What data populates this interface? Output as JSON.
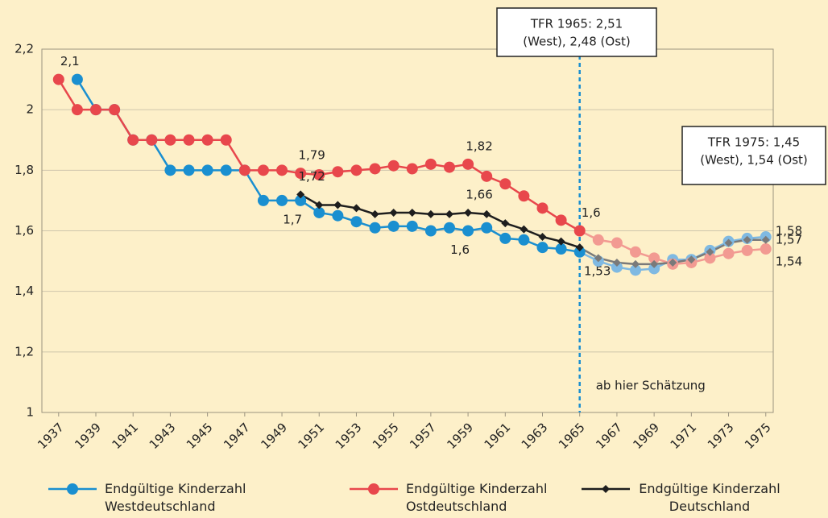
{
  "chart_data": {
    "type": "line",
    "x": [
      1937,
      1938,
      1939,
      1940,
      1941,
      1942,
      1943,
      1944,
      1945,
      1946,
      1947,
      1948,
      1949,
      1950,
      1951,
      1952,
      1953,
      1954,
      1955,
      1956,
      1957,
      1958,
      1959,
      1960,
      1961,
      1962,
      1963,
      1964,
      1965,
      1966,
      1967,
      1968,
      1969,
      1970,
      1971,
      1972,
      1973,
      1974,
      1975
    ],
    "xlim": [
      1936.1,
      1975.4
    ],
    "xticks": [
      1937,
      1939,
      1941,
      1943,
      1945,
      1947,
      1949,
      1951,
      1953,
      1955,
      1957,
      1959,
      1961,
      1963,
      1965,
      1967,
      1969,
      1971,
      1973,
      1975
    ],
    "ylim": [
      1,
      2.2
    ],
    "yticks": [
      1,
      {
        "value": 1.2,
        "label": "1,2"
      },
      {
        "value": 1.4,
        "label": "1,4"
      },
      {
        "value": 1.6,
        "label": "1,6"
      },
      {
        "value": 1.8,
        "label": "1,8"
      },
      2,
      {
        "value": 2.2,
        "label": "2,2"
      }
    ],
    "grid": true,
    "vline": 1965,
    "vline_label": "ab hier Schätzung",
    "annotations": [
      {
        "lines": [
          "TFR 1965: 2,51",
          "(West), 2,48 (Ost)"
        ]
      },
      {
        "lines": [
          "TFR 1975: 1,45",
          "(West), 1,54 (Ost)"
        ]
      }
    ],
    "series": [
      {
        "name": "Endgültige Kinderzahl Westdeutschland",
        "color": "#1a8fd0",
        "estimate_color": "#7fb9e2",
        "marker": "circle",
        "values": [
          null,
          2.1,
          2.0,
          2.0,
          1.9,
          1.9,
          1.8,
          1.8,
          1.8,
          1.8,
          1.8,
          1.7,
          1.7,
          1.7,
          1.66,
          1.65,
          1.63,
          1.61,
          1.615,
          1.615,
          1.6,
          1.61,
          1.6,
          1.61,
          1.575,
          1.57,
          1.545,
          1.54,
          1.53,
          1.5,
          1.48,
          1.47,
          1.475,
          1.505,
          1.505,
          1.535,
          1.565,
          1.575,
          1.58
        ],
        "value_labels": [
          null,
          null,
          null,
          null,
          null,
          null,
          null,
          null,
          null,
          null,
          null,
          null,
          null,
          "1,7",
          null,
          null,
          null,
          null,
          null,
          null,
          null,
          null,
          "1,6",
          null,
          null,
          null,
          null,
          null,
          "1,53",
          null,
          null,
          null,
          null,
          null,
          null,
          null,
          null,
          null,
          "1,58"
        ]
      },
      {
        "name": "Endgültige Kinderzahl Ostdeutschland",
        "color": "#e8474c",
        "estimate_color": "#f29a92",
        "marker": "circle",
        "values": [
          2.1,
          2.0,
          2.0,
          2.0,
          1.9,
          1.9,
          1.9,
          1.9,
          1.9,
          1.9,
          1.8,
          1.8,
          1.8,
          1.79,
          1.785,
          1.795,
          1.8,
          1.805,
          1.815,
          1.805,
          1.82,
          1.81,
          1.82,
          1.78,
          1.755,
          1.715,
          1.675,
          1.635,
          1.6,
          1.57,
          1.56,
          1.53,
          1.51,
          1.49,
          1.495,
          1.51,
          1.525,
          1.535,
          1.54
        ],
        "value_labels": [
          "2,1",
          null,
          null,
          null,
          null,
          null,
          null,
          null,
          null,
          null,
          null,
          null,
          null,
          "1,79",
          null,
          null,
          null,
          null,
          null,
          null,
          null,
          null,
          "1,82",
          null,
          null,
          null,
          null,
          null,
          "1,6",
          null,
          null,
          null,
          null,
          null,
          null,
          null,
          null,
          null,
          "1,54"
        ]
      },
      {
        "name": "Endgültige Kinderzahl Deutschland",
        "color": "#1e1e1e",
        "estimate_color": "#7a7a7a",
        "marker": "diamond",
        "values": [
          null,
          null,
          null,
          null,
          null,
          null,
          null,
          null,
          null,
          null,
          null,
          null,
          null,
          1.72,
          1.685,
          1.685,
          1.675,
          1.655,
          1.66,
          1.66,
          1.655,
          1.655,
          1.66,
          1.655,
          1.625,
          1.605,
          1.58,
          1.565,
          1.545,
          1.51,
          1.495,
          1.49,
          1.49,
          1.495,
          1.505,
          1.53,
          1.56,
          1.57,
          1.57
        ],
        "value_labels": [
          null,
          null,
          null,
          null,
          null,
          null,
          null,
          null,
          null,
          null,
          null,
          null,
          null,
          "1,72",
          null,
          null,
          null,
          null,
          null,
          null,
          null,
          null,
          "1,66",
          null,
          null,
          null,
          null,
          null,
          null,
          null,
          null,
          null,
          null,
          null,
          null,
          null,
          null,
          null,
          "1,57"
        ]
      }
    ]
  }
}
